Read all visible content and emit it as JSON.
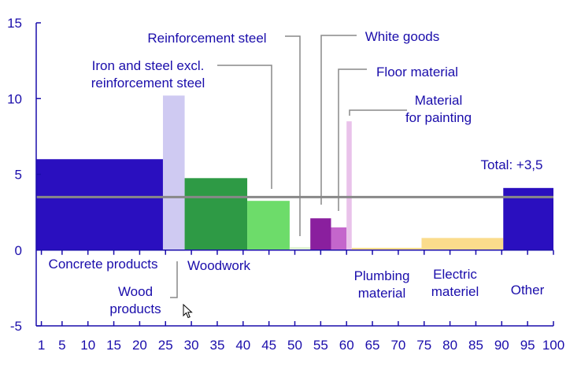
{
  "chart_data": {
    "type": "bar",
    "subtype": "variable-width",
    "x_axis": {
      "ticks": [
        1,
        5,
        10,
        15,
        20,
        25,
        30,
        35,
        40,
        45,
        50,
        55,
        60,
        65,
        70,
        75,
        80,
        85,
        90,
        95,
        100
      ],
      "range": [
        0,
        100
      ]
    },
    "y_axis": {
      "ticks": [
        15,
        10,
        5,
        0,
        -5
      ],
      "range": [
        -5,
        15
      ]
    },
    "grid": false,
    "reference_line": {
      "label": "Total: +3,5",
      "value": 3.5
    },
    "bars": [
      {
        "label": "Concrete products",
        "x_start": 0,
        "x_end": 24.5,
        "value": 6.0,
        "color": "#2a0fbf"
      },
      {
        "label": "Wood products",
        "x_start": 24.5,
        "x_end": 28.7,
        "value": 10.2,
        "color": "#cfcaf2"
      },
      {
        "label": "Woodwork",
        "x_start": 28.7,
        "x_end": 40.8,
        "value": 4.75,
        "color": "#2e9a45"
      },
      {
        "label": "Iron and steel excl. reinforcement steel",
        "x_start": 40.8,
        "x_end": 49.0,
        "value": 3.25,
        "color": "#6ddc6a"
      },
      {
        "label": "Reinforcement steel",
        "x_start": 49.0,
        "x_end": 53.0,
        "value": 0.2,
        "color": "#dff3d3"
      },
      {
        "label": "White goods",
        "x_start": 53.0,
        "x_end": 57.0,
        "value": 2.1,
        "color": "#8a1f9e"
      },
      {
        "label": "Floor material",
        "x_start": 57.0,
        "x_end": 60.0,
        "value": 1.5,
        "color": "#c466cc"
      },
      {
        "label": "Material for painting",
        "x_start": 60.0,
        "x_end": 61.0,
        "value": 8.5,
        "color": "#e9c2ea"
      },
      {
        "label": "Plumbing material",
        "x_start": 61.0,
        "x_end": 74.5,
        "value": 0.15,
        "color": "#fbdc8c"
      },
      {
        "label": "Electric materiel",
        "x_start": 74.5,
        "x_end": 90.3,
        "value": 0.8,
        "color": "#fbdc8c"
      },
      {
        "label": "Other",
        "x_start": 90.3,
        "x_end": 100,
        "value": 4.1,
        "color": "#2a0fbf"
      }
    ],
    "annotations": {
      "concrete": "Concrete products",
      "wood_1": "Wood",
      "wood_2": "products",
      "woodwork": "Woodwork",
      "iron_1": "Iron and steel excl.",
      "iron_2": "reinforcement steel",
      "reinforcement": "Reinforcement steel",
      "white_goods": "White goods",
      "floor": "Floor material",
      "painting_1": "Material",
      "painting_2": "for painting",
      "plumbing_1": "Plumbing",
      "plumbing_2": "material",
      "electric_1": "Electric",
      "electric_2": "materiel",
      "other": "Other",
      "total": "Total: +3,5"
    },
    "colors": {
      "axis": "#1a0dab",
      "reference_line": "#888888",
      "leader_line": "#888888"
    }
  }
}
